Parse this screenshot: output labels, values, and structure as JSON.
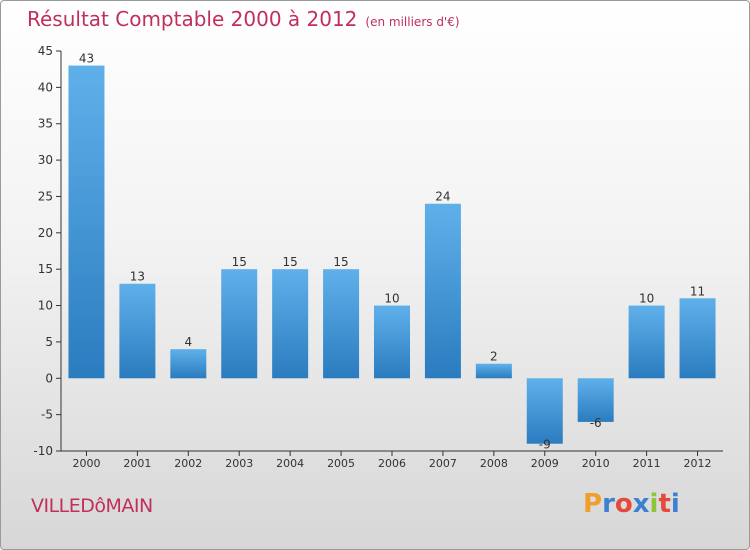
{
  "header": {
    "title": "Résultat Comptable 2000 à 2012",
    "unit": "(en milliers d'€)"
  },
  "footer": {
    "city": "VILLEDôMAIN",
    "logo_letters": [
      "P",
      "r",
      "o",
      "x",
      "i",
      "t",
      "i"
    ],
    "logo_colors": [
      "#f0a02a",
      "#3d7fd1",
      "#e6493a",
      "#3d7fd1",
      "#8cc43a",
      "#e6493a",
      "#3d7fd1"
    ]
  },
  "colors": {
    "bar_light": "#5fb0ea",
    "bar_dark": "#2b7cbf",
    "title": "#c0305b"
  },
  "chart_data": {
    "type": "bar",
    "title": "Résultat Comptable 2000 à 2012",
    "subtitle": "(en milliers d'€)",
    "categories": [
      "2000",
      "2001",
      "2002",
      "2003",
      "2004",
      "2005",
      "2006",
      "2007",
      "2008",
      "2009",
      "2010",
      "2011",
      "2012"
    ],
    "values": [
      43,
      13,
      4,
      15,
      15,
      15,
      10,
      24,
      2,
      -9,
      -6,
      10,
      11
    ],
    "ylim": [
      -10,
      45
    ],
    "yticks": [
      -10,
      -5,
      0,
      5,
      10,
      15,
      20,
      25,
      30,
      35,
      40,
      45
    ],
    "grid": false,
    "legend": "none"
  }
}
